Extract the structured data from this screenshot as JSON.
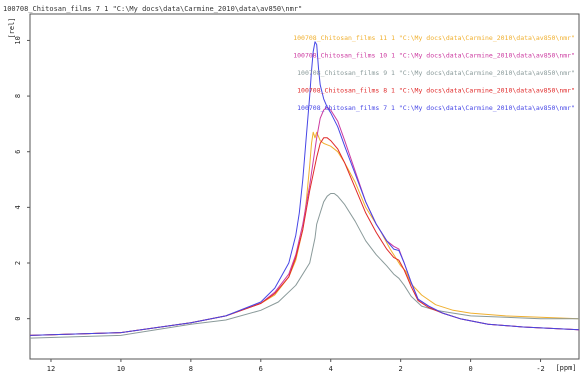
{
  "header": {
    "title": "100708_Chitosan_films  7  1  \"C:\\My docs\\data\\Carmine_2010\\data\\av850\\nmr\""
  },
  "chart_data": {
    "type": "line",
    "xlabel": "[ppm]",
    "ylabel": "[rel]",
    "x_reversed": true,
    "xlim": [
      12.6,
      -3.1
    ],
    "ylim": [
      -1.45,
      10.95
    ],
    "x_ticks": [
      "12",
      "10",
      "8",
      "6",
      "4",
      "2",
      "0",
      "-2"
    ],
    "x_tick_values": [
      12,
      10,
      8,
      6,
      4,
      2,
      0,
      -2
    ],
    "y_ticks": [
      "0",
      "2",
      "4",
      "6",
      "8",
      "10"
    ],
    "y_tick_values": [
      0,
      2,
      4,
      6,
      8,
      10
    ],
    "legend_position": "top-right",
    "series": [
      {
        "name": "100708_Chitosan_films  11  1  \"C:\\My docs\\data\\Carmine_2010\\data\\av850\\nmr\"",
        "color": "#f0b030",
        "x": [
          12.6,
          10,
          8,
          7,
          6,
          5.6,
          5.2,
          5,
          4.8,
          4.7,
          4.6,
          4.55,
          4.5,
          4.45,
          4.4,
          4.3,
          4.2,
          4.1,
          4,
          3.8,
          3.6,
          3.3,
          3,
          2.6,
          2.3,
          2.1,
          2,
          1.85,
          1.7,
          1.4,
          1,
          0.5,
          0,
          -1,
          -2,
          -3.1
        ],
        "y": [
          -0.6,
          -0.5,
          -0.15,
          0.1,
          0.55,
          0.85,
          1.5,
          2.1,
          3.2,
          4.2,
          5.5,
          6.3,
          6.7,
          6.5,
          6.7,
          6.4,
          6.3,
          6.25,
          6.2,
          6.0,
          5.6,
          4.9,
          4.0,
          3.2,
          2.5,
          2.1,
          1.9,
          1.7,
          1.25,
          0.85,
          0.5,
          0.3,
          0.2,
          0.1,
          0.05,
          0.0
        ]
      },
      {
        "name": "100708_Chitosan_films  10  1  \"C:\\My docs\\data\\Carmine_2010\\data\\av850\\nmr\"",
        "color": "#cc3aa0",
        "x": [
          12.6,
          10,
          8,
          7,
          6,
          5.6,
          5.2,
          5,
          4.8,
          4.6,
          4.4,
          4.3,
          4.2,
          4.1,
          4,
          3.8,
          3.6,
          3.3,
          3,
          2.7,
          2.4,
          2.2,
          2.05,
          1.9,
          1.7,
          1.5,
          1.2,
          0.8,
          0.3,
          -0.5,
          -1.5,
          -3.1
        ],
        "y": [
          -0.6,
          -0.5,
          -0.15,
          0.1,
          0.55,
          0.95,
          1.6,
          2.3,
          3.4,
          4.8,
          6.5,
          7.2,
          7.5,
          7.6,
          7.5,
          7.1,
          6.4,
          5.3,
          4.2,
          3.4,
          2.8,
          2.6,
          2.5,
          2.0,
          1.3,
          0.7,
          0.45,
          0.2,
          0.0,
          -0.2,
          -0.3,
          -0.4
        ]
      },
      {
        "name": "100708_Chitosan_films  9  1  \"C:\\My docs\\data\\Carmine_2010\\data\\av850\\nmr\"",
        "color": "#8a9a9a",
        "x": [
          12.6,
          10,
          8,
          7,
          6,
          5.5,
          5,
          4.6,
          4.45,
          4.4,
          4.3,
          4.2,
          4.1,
          4,
          3.9,
          3.8,
          3.6,
          3.3,
          3,
          2.7,
          2.4,
          2.2,
          2.05,
          1.9,
          1.7,
          1.4,
          1,
          0.5,
          0,
          -1,
          -2,
          -3.1
        ],
        "y": [
          -0.7,
          -0.6,
          -0.2,
          -0.05,
          0.3,
          0.6,
          1.2,
          2.0,
          2.9,
          3.4,
          3.8,
          4.2,
          4.4,
          4.5,
          4.5,
          4.4,
          4.1,
          3.5,
          2.8,
          2.3,
          1.9,
          1.6,
          1.45,
          1.2,
          0.8,
          0.45,
          0.3,
          0.2,
          0.1,
          0.05,
          0.0,
          0.0
        ]
      },
      {
        "name": "100708_Chitosan_films  8  1  \"C:\\My docs\\data\\Carmine_2010\\data\\av850\\nmr\"",
        "color": "#e02a2a",
        "x": [
          12.6,
          10,
          8,
          7,
          6,
          5.6,
          5.2,
          5,
          4.8,
          4.6,
          4.4,
          4.3,
          4.2,
          4.1,
          4,
          3.8,
          3.6,
          3.3,
          3,
          2.7,
          2.4,
          2.2,
          2.05,
          1.9,
          1.7,
          1.5,
          1.2,
          0.8,
          0.3,
          -0.5,
          -1.5,
          -3.1
        ],
        "y": [
          -0.6,
          -0.5,
          -0.15,
          0.1,
          0.55,
          0.9,
          1.5,
          2.2,
          3.2,
          4.6,
          5.8,
          6.3,
          6.5,
          6.5,
          6.4,
          6.1,
          5.6,
          4.7,
          3.8,
          3.1,
          2.5,
          2.2,
          2.1,
          1.75,
          1.15,
          0.65,
          0.4,
          0.2,
          0.0,
          -0.2,
          -0.3,
          -0.4
        ]
      },
      {
        "name": "100708_Chitosan_films  7  1  \"C:\\My docs\\data\\Carmine_2010\\data\\av850\\nmr\"",
        "color": "#4646e6",
        "x": [
          12.6,
          10,
          8,
          7,
          6,
          5.6,
          5.2,
          5,
          4.9,
          4.8,
          4.7,
          4.6,
          4.55,
          4.5,
          4.45,
          4.4,
          4.35,
          4.3,
          4.2,
          4.1,
          4,
          3.8,
          3.6,
          3.3,
          3,
          2.7,
          2.4,
          2.2,
          2.05,
          1.9,
          1.7,
          1.5,
          1.2,
          0.8,
          0.3,
          -0.5,
          -1.5,
          -3.1
        ],
        "y": [
          -0.6,
          -0.5,
          -0.15,
          0.1,
          0.6,
          1.1,
          2.0,
          3.0,
          3.8,
          5.0,
          6.5,
          8.0,
          8.9,
          9.6,
          9.95,
          9.85,
          9.0,
          8.4,
          7.9,
          7.6,
          7.4,
          6.9,
          6.2,
          5.2,
          4.2,
          3.4,
          2.8,
          2.5,
          2.45,
          2.0,
          1.3,
          0.7,
          0.45,
          0.2,
          0.0,
          -0.2,
          -0.3,
          -0.4
        ]
      }
    ]
  }
}
